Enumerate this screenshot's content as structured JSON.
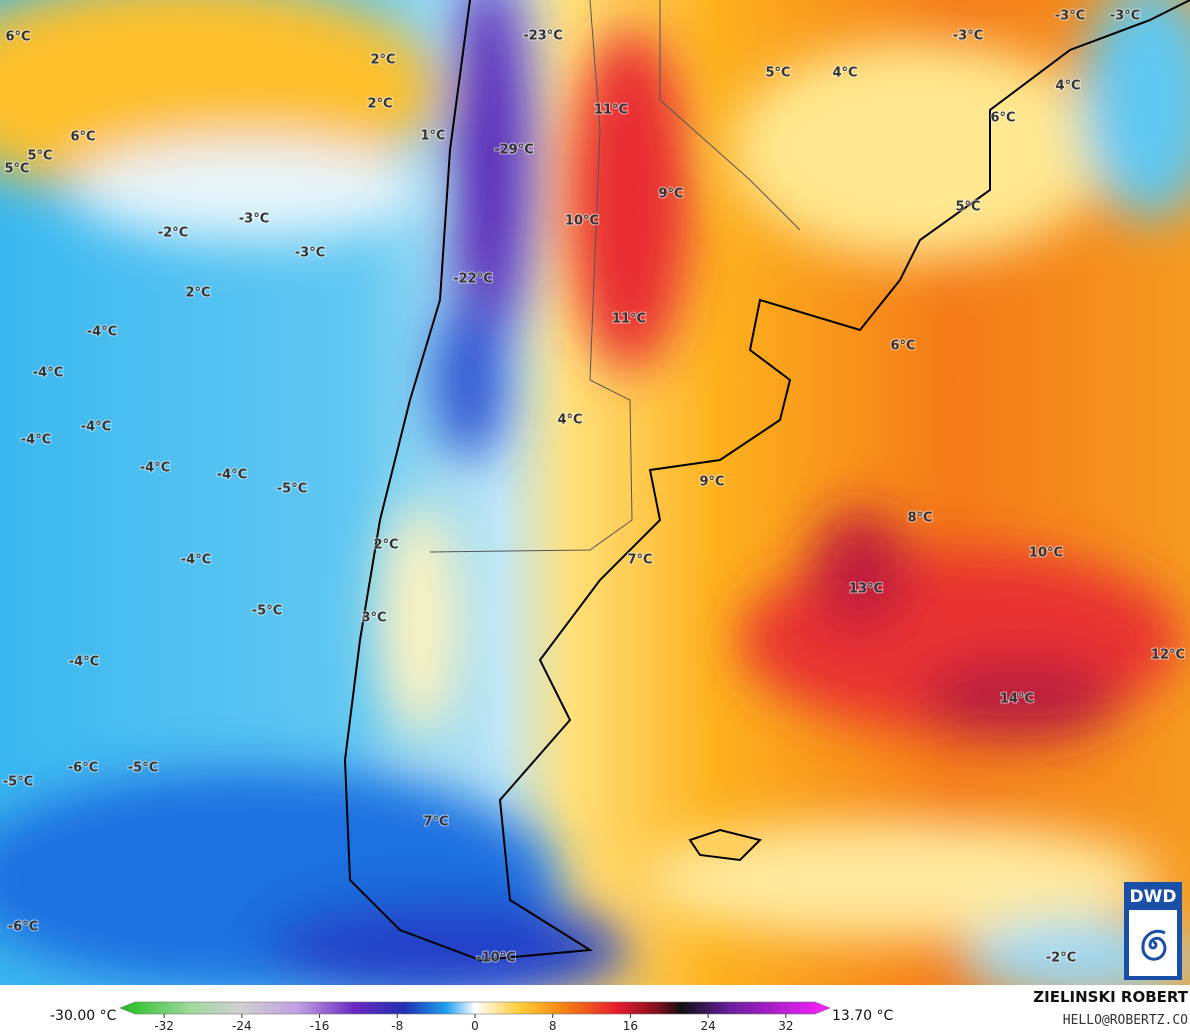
{
  "map": {
    "labels": [
      "6°C",
      "2°C",
      "2°C",
      "6°C",
      "1°C",
      "5°C",
      "5°C",
      "-23°C",
      "11°C",
      "-29°C",
      "9°C",
      "10°C",
      "-3°C",
      "-2°C",
      "-3°C",
      "-22°C",
      "2°C",
      "11°C",
      "-4°C",
      "-4°C",
      "4°C",
      "-4°C",
      "-4°C",
      "-4°C",
      "-4°C",
      "-5°C",
      "9°C",
      "8°C",
      "2°C",
      "10°C",
      "7°C",
      "-4°C",
      "13°C",
      "-5°C",
      "3°C",
      "-4°C",
      "12°C",
      "14°C",
      "-5°C",
      "-6°C",
      "-5°C",
      "7°C",
      "-6°C",
      "-10°C",
      "-2°C",
      "5°C",
      "4°C",
      "-3°C",
      "-3°C",
      "-3°C",
      "4°C",
      "6°C",
      "5°C",
      "6°C"
    ],
    "logo": "DWD"
  },
  "colorbar": {
    "min_label": "-30.00 °C",
    "max_label": "13.70 °C",
    "lim": [
      -35,
      35
    ],
    "ticks": [
      -32,
      -24,
      -16,
      -8,
      0,
      8,
      16,
      24,
      32
    ]
  },
  "credit": {
    "name": "ZIELINSKI ROBERT",
    "email": "HELLO@ROBERTZ.CO"
  }
}
